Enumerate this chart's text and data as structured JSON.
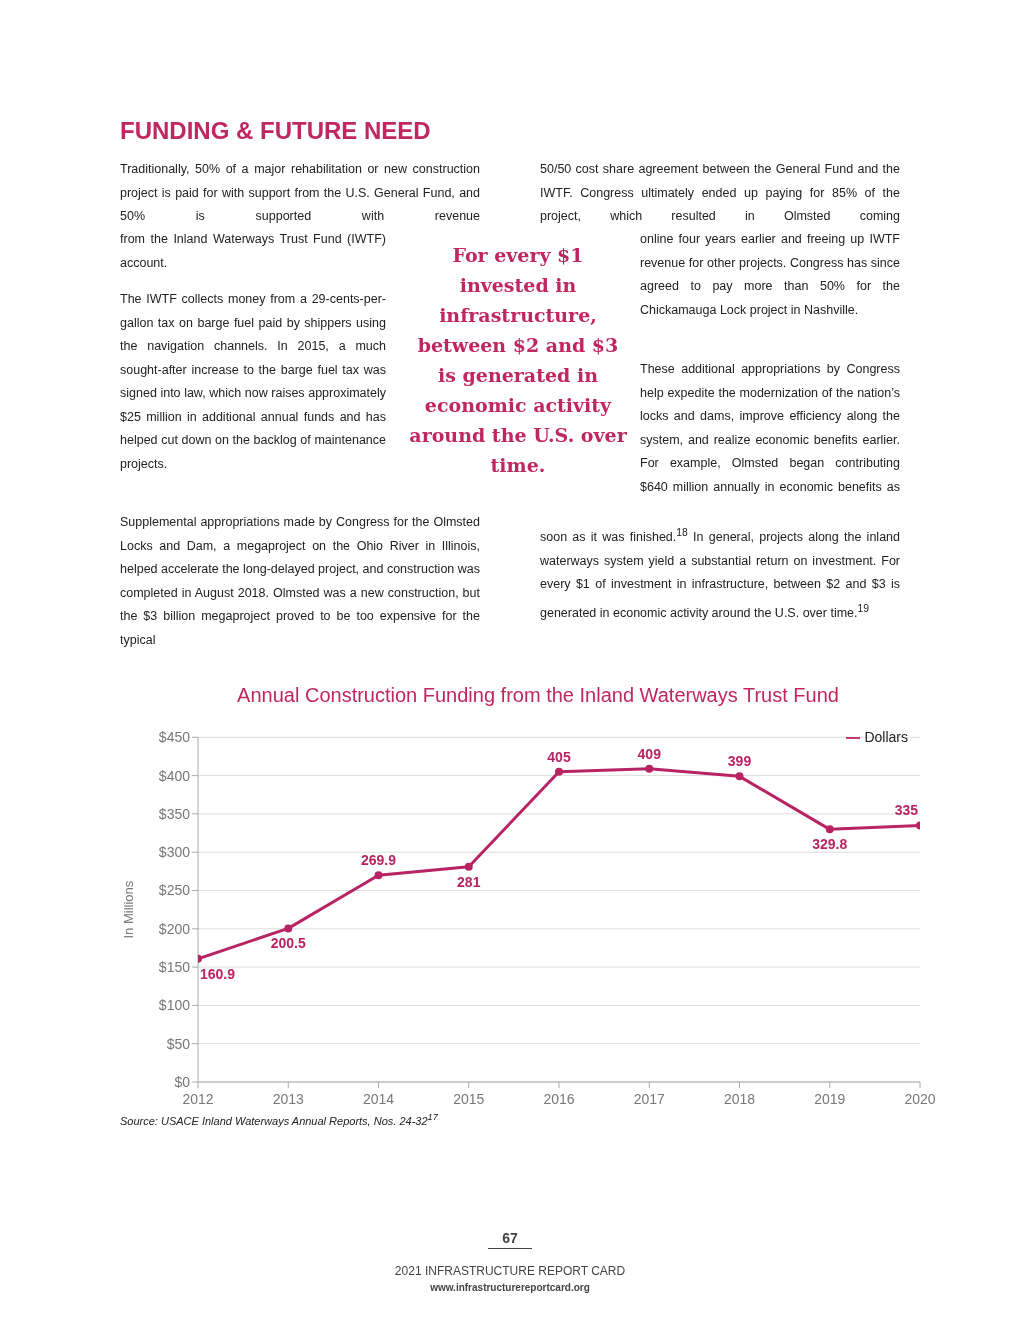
{
  "chart_data": {
    "type": "line",
    "title": "Annual Construction Funding from the Inland Waterways Trust Fund",
    "ylabel": "In Millions",
    "x": [
      2012,
      2013,
      2014,
      2015,
      2016,
      2017,
      2018,
      2019,
      2020
    ],
    "series": [
      {
        "name": "Dollars",
        "color": "#b82463",
        "values": [
          160.9,
          200.5,
          269.9,
          281,
          405,
          409,
          399,
          329.8,
          335
        ]
      }
    ],
    "xlim": [
      2012,
      2020
    ],
    "xticks": [
      2012,
      2013,
      2014,
      2015,
      2016,
      2017,
      2018,
      2019,
      2020
    ],
    "ylim": [
      0,
      450
    ],
    "yticks": [
      {
        "value": 0,
        "label": "$0"
      },
      {
        "value": 50,
        "label": "$50"
      },
      {
        "value": 100,
        "label": "$100"
      },
      {
        "value": 150,
        "label": "$150"
      },
      {
        "value": 200,
        "label": "$200"
      },
      {
        "value": 250,
        "label": "$250"
      },
      {
        "value": 300,
        "label": "$300"
      },
      {
        "value": 350,
        "label": "$350"
      },
      {
        "value": 400,
        "label": "$400"
      },
      {
        "value": 450,
        "label": "$450"
      }
    ],
    "grid": "y",
    "legend": "top right",
    "marker": "circle",
    "line_style": "solid",
    "data_labels": true,
    "annotations": [
      "FUNDING & FUTURE NEED",
      "Traditionally, 50% of a major rehabilitation or new construction project is paid for with support from the U.S. General Fund, and 50% is supported with revenue",
      "from the Inland Waterways Trust Fund (IWTF) account.",
      "The IWTF collects money from a 29-cents-per-gallon tax on barge fuel paid by shippers using the navigation channels. In 2015, a much sought-after increase to the barge fuel tax was signed into law, which now raises approximately $25 million in additional annual funds and has helped cut down on the backlog of maintenance projects.",
      "Supplemental appropriations made by Congress for the Olmsted Locks and Dam, a megaproject on the Ohio River in Illinois, helped accelerate the long-delayed project, and construction was completed in August 2018. Olmsted was a new construction, but the $3 billion megaproject proved to be too expensive for the typical",
      "For every $1 invested in infrastructure, between $2 and $3 is generated in economic activity around the U.S. over time.",
      "50/50 cost share agreement between the General Fund and the IWTF. Congress ultimately ended up paying for 85% of the project, which resulted in Olmsted coming",
      "online four years earlier and freeing up IWTF revenue for other projects. Congress has since agreed to pay more than 50% for the Chickamauga Lock project in Nashville.",
      "These additional appropriations by Congress help expedite the modernization of the nation’s locks and dams, improve efficiency along the system, and realize economic benefits earlier. For example, Olmsted began contributing $640 million annually in economic benefits as",
      "soon as it was finished.$^{18}$ In general, projects along the inland waterways system yield a substantial return on investment. For every $1 of investment in infrastructure, between $2 and $3 is generated in economic activity around the U.S. over time.$^{19}$",
      "Source: USACE Inland Waterways Annual Reports, Nos. 24-32$^{17}$",
      "67",
      "2021 INFRASTRUCTURE REPORT CARD",
      "www.infrastructurereportcard.org"
    ]
  }
}
